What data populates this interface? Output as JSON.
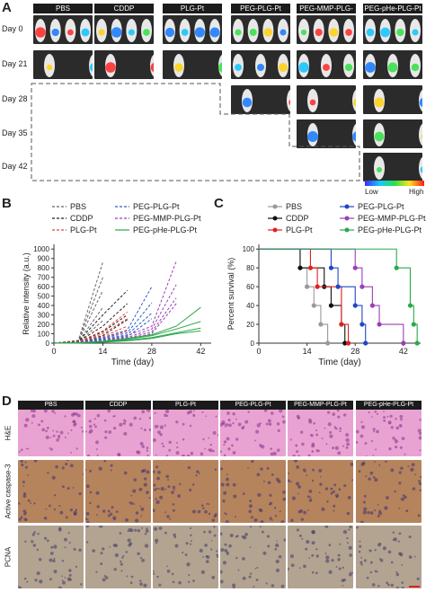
{
  "panel_labels": {
    "a": "A",
    "b": "B",
    "c": "C",
    "d": "D"
  },
  "imaging": {
    "groups": [
      "PBS",
      "CDDP",
      "PLG-Pt",
      "PEG-PLG-Pt",
      "PEG-MMP-PLG-Pt",
      "PEG-pHe-PLG-Pt"
    ],
    "days": [
      "Day 0",
      "Day 21",
      "Day 28",
      "Day 35",
      "Day 42"
    ],
    "colorbar_low": "Low",
    "colorbar_high": "High"
  },
  "histology": {
    "groups": [
      "PBS",
      "CDDP",
      "PLG-Pt",
      "PEG-PLG-Pt",
      "PEG-MMP-PLG-Pt",
      "PEG-pHe-PLG-Pt"
    ],
    "rows": [
      "H&E",
      "Active caspase-3",
      "PCNA"
    ]
  },
  "chart_data": [
    {
      "type": "line",
      "panel": "B",
      "xlabel": "Time (day)",
      "ylabel": "Relative intensity (a.u.)",
      "xlim": [
        0,
        45
      ],
      "ylim": [
        0,
        1050
      ],
      "xticks": [
        0,
        14,
        28,
        42
      ],
      "yticks": [
        0,
        100,
        200,
        300,
        400,
        500,
        600,
        700,
        800,
        900,
        1000
      ],
      "legend": "top",
      "series": [
        {
          "name": "PBS",
          "color": "#666666",
          "dashed": true,
          "lines": [
            [
              [
                0,
                0
              ],
              [
                7,
                30
              ],
              [
                14,
                860
              ]
            ],
            [
              [
                0,
                0
              ],
              [
                7,
                25
              ],
              [
                14,
                700
              ]
            ],
            [
              [
                0,
                0
              ],
              [
                7,
                20
              ],
              [
                14,
                560
              ]
            ],
            [
              [
                0,
                0
              ],
              [
                7,
                15
              ],
              [
                14,
                380
              ]
            ],
            [
              [
                0,
                0
              ],
              [
                7,
                10
              ],
              [
                14,
                240
              ]
            ]
          ]
        },
        {
          "name": "CDDP",
          "color": "#222222",
          "dashed": true,
          "lines": [
            [
              [
                0,
                0
              ],
              [
                7,
                20
              ],
              [
                14,
                300
              ],
              [
                21,
                560
              ]
            ],
            [
              [
                0,
                0
              ],
              [
                7,
                15
              ],
              [
                14,
                180
              ],
              [
                21,
                420
              ]
            ],
            [
              [
                0,
                0
              ],
              [
                7,
                10
              ],
              [
                14,
                120
              ],
              [
                21,
                300
              ]
            ],
            [
              [
                0,
                0
              ],
              [
                7,
                8
              ],
              [
                14,
                80
              ],
              [
                21,
                250
              ]
            ]
          ]
        },
        {
          "name": "PLG-Pt",
          "color": "#e8473b",
          "dashed": true,
          "lines": [
            [
              [
                0,
                0
              ],
              [
                7,
                15
              ],
              [
                14,
                130
              ],
              [
                21,
                330
              ]
            ],
            [
              [
                0,
                0
              ],
              [
                7,
                10
              ],
              [
                14,
                100
              ],
              [
                21,
                260
              ]
            ],
            [
              [
                0,
                0
              ],
              [
                7,
                8
              ],
              [
                14,
                70
              ],
              [
                21,
                180
              ]
            ],
            [
              [
                0,
                0
              ],
              [
                7,
                5
              ],
              [
                14,
                50
              ],
              [
                21,
                130
              ]
            ]
          ]
        },
        {
          "name": "PEG-PLG-Pt",
          "color": "#2b5cc9",
          "dashed": true,
          "lines": [
            [
              [
                0,
                0
              ],
              [
                7,
                10
              ],
              [
                14,
                60
              ],
              [
                21,
                140
              ],
              [
                28,
                600
              ]
            ],
            [
              [
                0,
                0
              ],
              [
                7,
                8
              ],
              [
                14,
                50
              ],
              [
                21,
                110
              ],
              [
                28,
                430
              ]
            ],
            [
              [
                0,
                0
              ],
              [
                7,
                6
              ],
              [
                14,
                40
              ],
              [
                21,
                90
              ],
              [
                28,
                320
              ]
            ],
            [
              [
                0,
                0
              ],
              [
                7,
                5
              ],
              [
                14,
                30
              ],
              [
                21,
                70
              ],
              [
                28,
                260
              ]
            ]
          ]
        },
        {
          "name": "PEG-MMP-PLG-Pt",
          "color": "#9b3fb5",
          "dashed": true,
          "lines": [
            [
              [
                0,
                0
              ],
              [
                7,
                5
              ],
              [
                14,
                30
              ],
              [
                21,
                80
              ],
              [
                28,
                180
              ],
              [
                35,
                870
              ]
            ],
            [
              [
                0,
                0
              ],
              [
                7,
                5
              ],
              [
                14,
                25
              ],
              [
                21,
                60
              ],
              [
                28,
                150
              ],
              [
                35,
                620
              ]
            ],
            [
              [
                0,
                0
              ],
              [
                7,
                4
              ],
              [
                14,
                20
              ],
              [
                21,
                50
              ],
              [
                28,
                120
              ],
              [
                35,
                480
              ]
            ],
            [
              [
                0,
                0
              ],
              [
                7,
                3
              ],
              [
                14,
                15
              ],
              [
                21,
                40
              ],
              [
                28,
                100
              ],
              [
                35,
                420
              ]
            ]
          ]
        },
        {
          "name": "PEG-pHe-PLG-Pt",
          "color": "#2aa84a",
          "dashed": false,
          "lines": [
            [
              [
                0,
                0
              ],
              [
                7,
                5
              ],
              [
                14,
                20
              ],
              [
                21,
                50
              ],
              [
                28,
                90
              ],
              [
                35,
                180
              ],
              [
                42,
                380
              ]
            ],
            [
              [
                0,
                0
              ],
              [
                7,
                4
              ],
              [
                14,
                15
              ],
              [
                21,
                40
              ],
              [
                28,
                80
              ],
              [
                35,
                150
              ],
              [
                42,
                230
              ]
            ],
            [
              [
                0,
                0
              ],
              [
                7,
                3
              ],
              [
                14,
                12
              ],
              [
                21,
                30
              ],
              [
                28,
                60
              ],
              [
                35,
                110
              ],
              [
                42,
                160
              ]
            ],
            [
              [
                0,
                0
              ],
              [
                7,
                3
              ],
              [
                14,
                10
              ],
              [
                21,
                25
              ],
              [
                28,
                50
              ],
              [
                35,
                100
              ],
              [
                42,
                130
              ]
            ]
          ]
        }
      ]
    },
    {
      "type": "line",
      "panel": "C",
      "subtype": "kaplan-meier",
      "xlabel": "Time (day)",
      "ylabel": "Percent survival (%)",
      "xlim": [
        0,
        47
      ],
      "ylim": [
        0,
        105
      ],
      "xticks": [
        0,
        14,
        28,
        42
      ],
      "yticks": [
        0,
        20,
        40,
        60,
        80,
        100
      ],
      "legend": "top",
      "series": [
        {
          "name": "PBS",
          "color": "#999999",
          "steps": [
            [
              0,
              100
            ],
            [
              12,
              80
            ],
            [
              14,
              60
            ],
            [
              16,
              40
            ],
            [
              18,
              20
            ],
            [
              20,
              0
            ]
          ],
          "markers": [
            [
              12,
              80
            ],
            [
              14,
              60
            ],
            [
              16,
              40
            ],
            [
              18,
              20
            ],
            [
              20,
              0
            ]
          ]
        },
        {
          "name": "CDDP",
          "color": "#111111",
          "steps": [
            [
              0,
              100
            ],
            [
              12,
              80
            ],
            [
              19,
              60
            ],
            [
              21,
              40
            ],
            [
              24,
              20
            ],
            [
              25,
              0
            ]
          ],
          "markers": [
            [
              12,
              80
            ],
            [
              19,
              60
            ],
            [
              21,
              40
            ],
            [
              24,
              20
            ],
            [
              25,
              0
            ]
          ]
        },
        {
          "name": "PLG-Pt",
          "color": "#e02020",
          "steps": [
            [
              0,
              100
            ],
            [
              15,
              80
            ],
            [
              17,
              60
            ],
            [
              24,
              20
            ],
            [
              26,
              0
            ]
          ],
          "markers": [
            [
              15,
              80
            ],
            [
              17,
              60
            ],
            [
              24,
              20
            ],
            [
              26,
              0
            ]
          ]
        },
        {
          "name": "PEG-PLG-Pt",
          "color": "#1f47c4",
          "steps": [
            [
              0,
              100
            ],
            [
              21,
              80
            ],
            [
              23,
              60
            ],
            [
              28,
              40
            ],
            [
              30,
              20
            ],
            [
              31,
              0
            ]
          ],
          "markers": [
            [
              21,
              80
            ],
            [
              23,
              60
            ],
            [
              28,
              40
            ],
            [
              30,
              20
            ],
            [
              31,
              0
            ]
          ]
        },
        {
          "name": "PEG-MMP-PLG-Pt",
          "color": "#9b3fb5",
          "steps": [
            [
              0,
              100
            ],
            [
              28,
              80
            ],
            [
              30,
              60
            ],
            [
              33,
              40
            ],
            [
              35,
              20
            ],
            [
              42,
              0
            ]
          ],
          "markers": [
            [
              28,
              80
            ],
            [
              30,
              60
            ],
            [
              33,
              40
            ],
            [
              35,
              20
            ],
            [
              42,
              0
            ]
          ]
        },
        {
          "name": "PEG-pHe-PLG-Pt",
          "color": "#2aa84a",
          "steps": [
            [
              0,
              100
            ],
            [
              40,
              80
            ],
            [
              44,
              40
            ],
            [
              45,
              20
            ],
            [
              46,
              0
            ]
          ],
          "markers": [
            [
              40,
              80
            ],
            [
              44,
              40
            ],
            [
              45,
              20
            ],
            [
              46,
              0
            ]
          ]
        }
      ]
    }
  ],
  "colors": {
    "he": "#e9a3d3",
    "ihc_brown": "#b5845d",
    "pcna": "#b3a391",
    "bg_dark": "#1b1b1b"
  }
}
